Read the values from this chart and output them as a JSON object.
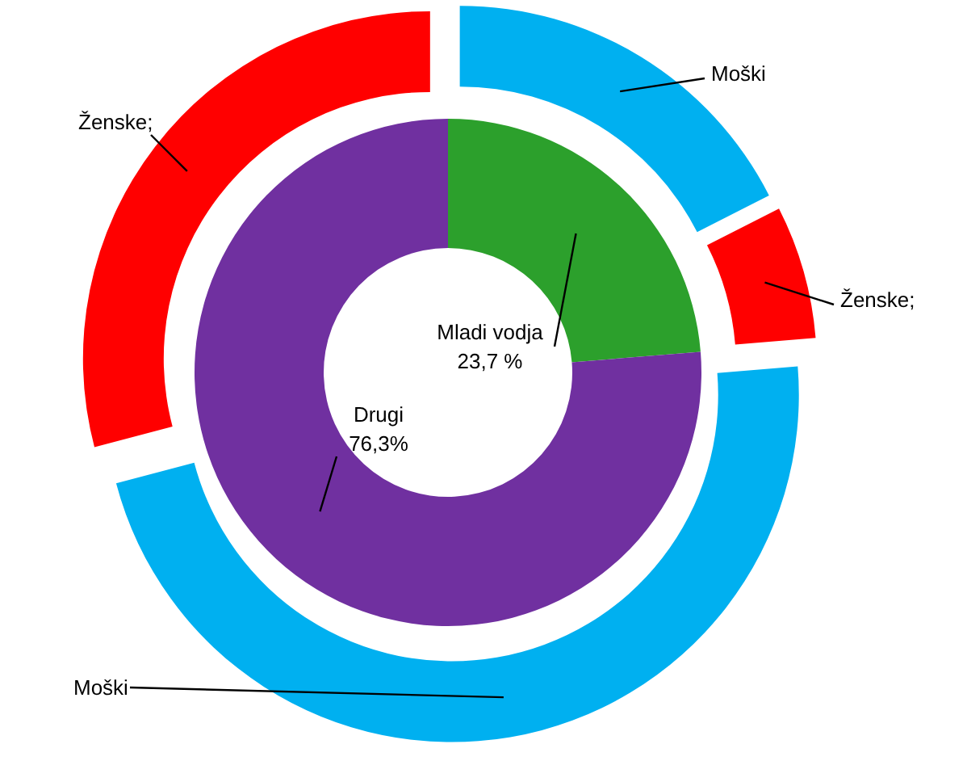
{
  "chart_data": {
    "type": "donut",
    "annotations": [
      "Mladi vodja",
      "Drugi",
      "Moški",
      "Ženske;",
      "Moški",
      "Ženske;"
    ],
    "series": [
      {
        "values": [
          23.7,
          76.3
        ],
        "colors": [
          "#2ca02c",
          "#7030a0"
        ],
        "value_labels": [
          "23,7 %",
          "76,3%"
        ]
      },
      {
        "values": [
          17.5,
          6.2,
          47.2,
          29.1
        ],
        "colors": [
          "#00b0f0",
          "#ff0000",
          "#00b0f0",
          "#ff0000"
        ]
      }
    ]
  }
}
